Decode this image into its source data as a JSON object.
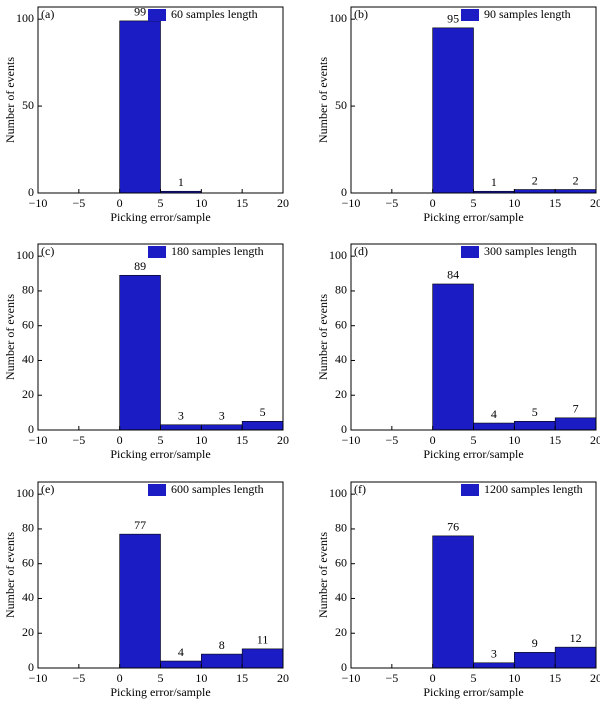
{
  "chart_data": [
    {
      "type": "histogram",
      "label": "(a)",
      "legend": "60 samples length",
      "color": "#1c1cc4",
      "bins": [
        -10,
        -5,
        0,
        5,
        10,
        15,
        20
      ],
      "values": [
        0,
        0,
        99,
        1,
        0,
        0
      ],
      "xlabel": "Picking error/sample",
      "ylabel": "Number of events",
      "xlim": [
        -10,
        20
      ],
      "ylim": [
        0,
        107
      ],
      "xticks": [
        {
          "value": -10,
          "label": "−10"
        },
        {
          "value": -5,
          "label": "−5"
        },
        0,
        5,
        10,
        15,
        20
      ],
      "yticks": [
        0,
        50,
        100
      ]
    },
    {
      "type": "histogram",
      "label": "(b)",
      "legend": "90 samples length",
      "color": "#1c1cc4",
      "bins": [
        -10,
        -5,
        0,
        5,
        10,
        15,
        20
      ],
      "values": [
        0,
        0,
        95,
        1,
        2,
        2
      ],
      "xlabel": "Picking error/sample",
      "ylabel": "Number of events",
      "xlim": [
        -10,
        20
      ],
      "ylim": [
        0,
        107
      ],
      "xticks": [
        {
          "value": -10,
          "label": "−10"
        },
        {
          "value": -5,
          "label": "−5"
        },
        0,
        5,
        10,
        15,
        20
      ],
      "yticks": [
        0,
        50,
        100
      ]
    },
    {
      "type": "histogram",
      "label": "(c)",
      "legend": "180 samples length",
      "color": "#1c1cc4",
      "bins": [
        -10,
        -5,
        0,
        5,
        10,
        15,
        20
      ],
      "values": [
        0,
        0,
        89,
        3,
        3,
        5
      ],
      "xlabel": "Picking error/sample",
      "ylabel": "Number of events",
      "xlim": [
        -10,
        20
      ],
      "ylim": [
        0,
        107
      ],
      "xticks": [
        {
          "value": -10,
          "label": "−10"
        },
        {
          "value": -5,
          "label": "−5"
        },
        0,
        5,
        10,
        15,
        20
      ],
      "yticks": [
        0,
        20,
        40,
        60,
        80,
        100
      ]
    },
    {
      "type": "histogram",
      "label": "(d)",
      "legend": "300 samples length",
      "color": "#1c1cc4",
      "bins": [
        -10,
        -5,
        0,
        5,
        10,
        15,
        20
      ],
      "values": [
        0,
        0,
        84,
        4,
        5,
        7
      ],
      "xlabel": "Picking error/sample",
      "ylabel": "Number of events",
      "xlim": [
        -10,
        20
      ],
      "ylim": [
        0,
        107
      ],
      "xticks": [
        {
          "value": -10,
          "label": "−10"
        },
        {
          "value": -5,
          "label": "−5"
        },
        0,
        5,
        10,
        15,
        20
      ],
      "yticks": [
        0,
        20,
        40,
        60,
        80,
        100
      ]
    },
    {
      "type": "histogram",
      "label": "(e)",
      "legend": "600 samples length",
      "color": "#1c1cc4",
      "bins": [
        -10,
        -5,
        0,
        5,
        10,
        15,
        20
      ],
      "values": [
        0,
        0,
        77,
        4,
        8,
        11
      ],
      "xlabel": "Picking error/sample",
      "ylabel": "Number of events",
      "xlim": [
        -10,
        20
      ],
      "ylim": [
        0,
        107
      ],
      "xticks": [
        {
          "value": -10,
          "label": "−10"
        },
        {
          "value": -5,
          "label": "−5"
        },
        0,
        5,
        10,
        15,
        20
      ],
      "yticks": [
        0,
        20,
        40,
        60,
        80,
        100
      ]
    },
    {
      "type": "histogram",
      "label": "(f)",
      "legend": "1200 samples length",
      "color": "#1c1cc4",
      "bins": [
        -10,
        -5,
        0,
        5,
        10,
        15,
        20
      ],
      "values": [
        0,
        0,
        76,
        3,
        9,
        12
      ],
      "xlabel": "Picking error/sample",
      "ylabel": "Number of events",
      "xlim": [
        -10,
        20
      ],
      "ylim": [
        0,
        107
      ],
      "xticks": [
        {
          "value": -10,
          "label": "−10"
        },
        {
          "value": -5,
          "label": "−5"
        },
        0,
        5,
        10,
        15,
        20
      ],
      "yticks": [
        0,
        20,
        40,
        60,
        80,
        100
      ]
    }
  ]
}
